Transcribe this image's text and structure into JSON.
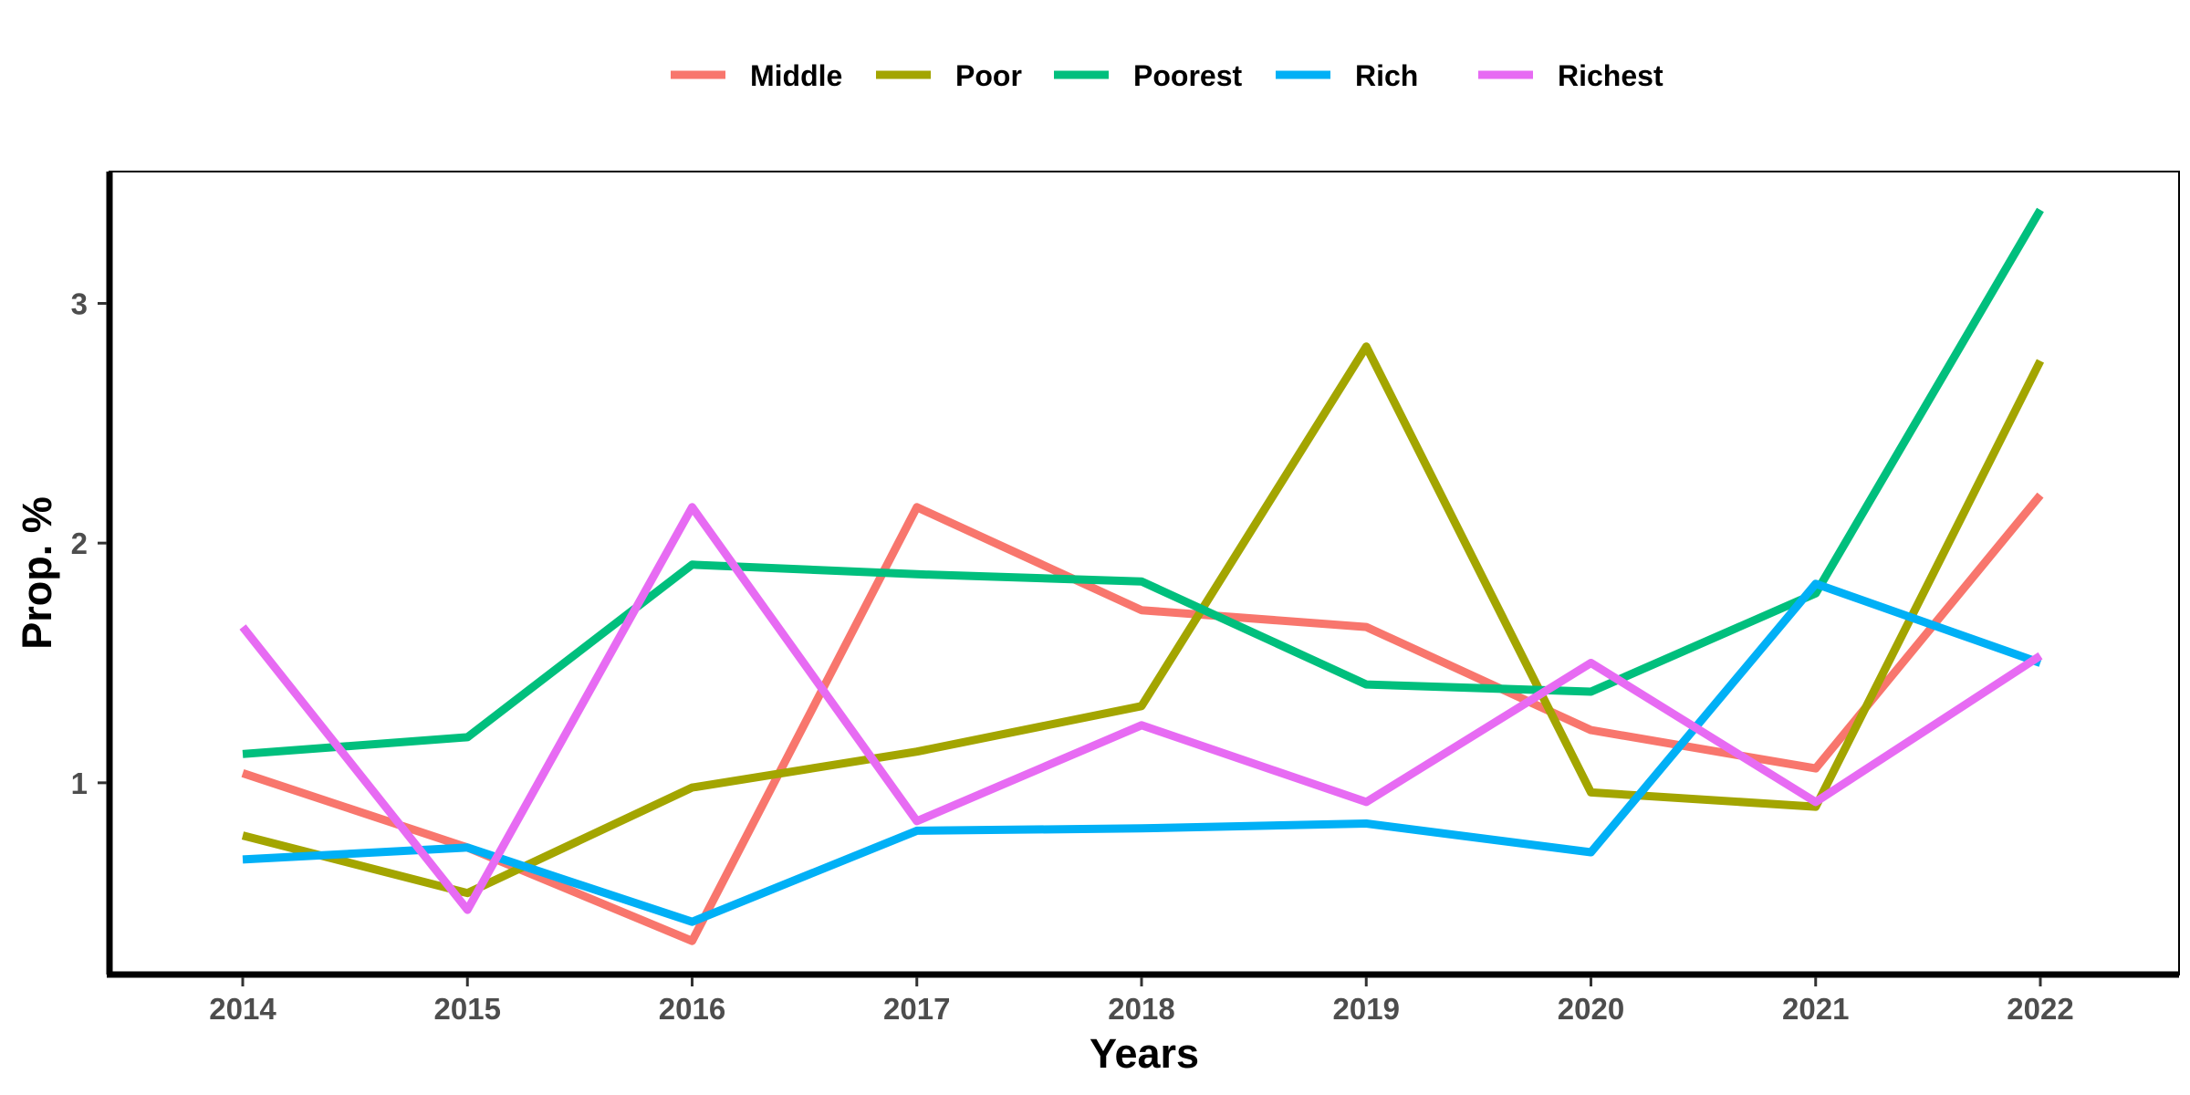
{
  "chart_data": {
    "type": "line",
    "xlabel": "Years",
    "ylabel": "Prop. %",
    "x": [
      "2014",
      "2015",
      "2016",
      "2017",
      "2018",
      "2019",
      "2020",
      "2021",
      "2022"
    ],
    "ylim": [
      0.2,
      3.55
    ],
    "yticks": [
      "1",
      "2",
      "3"
    ],
    "legend_position": "top",
    "grid": false,
    "series": [
      {
        "name": "Middle",
        "color": "#F8766D",
        "values": [
          1.04,
          0.73,
          0.34,
          2.15,
          1.72,
          1.65,
          1.22,
          1.06,
          2.2
        ]
      },
      {
        "name": "Poor",
        "color": "#A3A500",
        "values": [
          0.78,
          0.54,
          0.98,
          1.13,
          1.32,
          2.82,
          0.96,
          0.9,
          2.76
        ]
      },
      {
        "name": "Poorest",
        "color": "#00BF7D",
        "values": [
          1.12,
          1.19,
          1.91,
          1.87,
          1.84,
          1.41,
          1.38,
          1.79,
          3.39
        ]
      },
      {
        "name": "Rich",
        "color": "#00B0F6",
        "values": [
          0.68,
          0.73,
          0.42,
          0.8,
          0.81,
          0.83,
          0.71,
          1.83,
          1.5
        ]
      },
      {
        "name": "Richest",
        "color": "#E76BF3",
        "values": [
          1.65,
          0.47,
          2.15,
          0.84,
          1.24,
          0.92,
          1.5,
          0.92,
          1.53
        ]
      }
    ]
  }
}
